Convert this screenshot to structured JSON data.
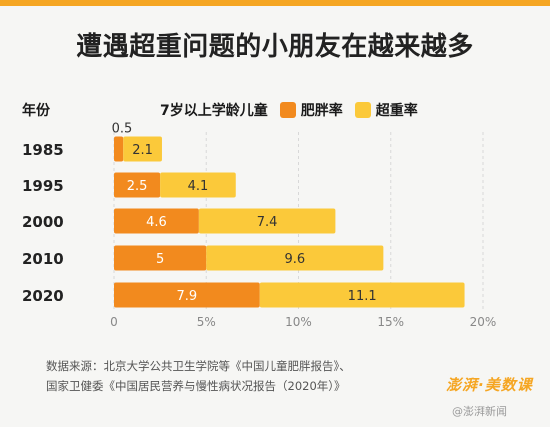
{
  "title": "遭遇超重问题的小朋友在越来越多",
  "legend": {
    "category_title": "年份",
    "group_label": "7岁以上学龄儿童",
    "obesity_label": "肥胖率",
    "overweight_label": "超重率"
  },
  "colors": {
    "obesity": "#f28a1e",
    "overweight": "#fbc93a",
    "accent": "#f5a623"
  },
  "chart_data": {
    "type": "bar",
    "orientation": "horizontal",
    "stacked": true,
    "categories": [
      "1985",
      "1995",
      "2000",
      "2010",
      "2020"
    ],
    "series": [
      {
        "name": "肥胖率",
        "values": [
          0.5,
          2.5,
          4.6,
          5.0,
          7.9
        ]
      },
      {
        "name": "超重率",
        "values": [
          2.1,
          4.1,
          7.4,
          9.6,
          11.1
        ]
      }
    ],
    "xlim": [
      0,
      20
    ],
    "x_ticks": [
      "0",
      "5%",
      "10%",
      "15%",
      "20%"
    ],
    "grid": true,
    "legend_position": "top"
  },
  "source": {
    "line1": "数据来源：北京大学公共卫生学院等《中国儿童肥胖报告》、",
    "line2": "国家卫健委《中国居民营养与慢性病状况报告（2020年）》"
  },
  "brand": "澎湃·美数课",
  "watermark": "@澎湃新闻"
}
